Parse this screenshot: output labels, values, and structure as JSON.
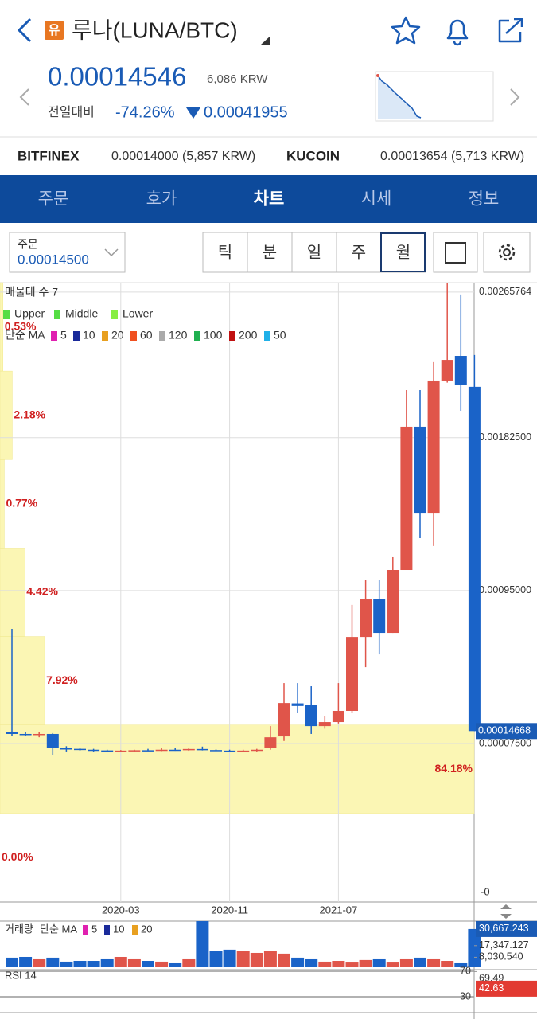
{
  "header": {
    "badge": "유",
    "title": "루나(LUNA/BTC)"
  },
  "price": {
    "value": "0.00014546",
    "krw": "6,086 KRW",
    "change_label": "전일대비",
    "change_pct": "-74.26%",
    "change_amount": "0.00041955"
  },
  "exchanges": [
    {
      "name": "BITFINEX",
      "price": "0.00014000 (5,857 KRW)"
    },
    {
      "name": "KUCOIN",
      "price": "0.00013654 (5,713 KRW)"
    }
  ],
  "tabs": [
    "주문",
    "호가",
    "차트",
    "시세",
    "정보"
  ],
  "order": {
    "label": "주문",
    "value": "0.00014500"
  },
  "periods": [
    "틱",
    "분",
    "일",
    "주",
    "월"
  ],
  "chart_data": [
    {
      "type": "candlestick",
      "title": "매물대 수 7",
      "legend": {
        "bands": [
          {
            "name": "Upper",
            "color": "#55dd44"
          },
          {
            "name": "Middle",
            "color": "#55dd44"
          },
          {
            "name": "Lower",
            "color": "#88ee44"
          }
        ],
        "ma_label": "단순 MA",
        "ma": [
          {
            "name": "5",
            "color": "#e020b0"
          },
          {
            "name": "10",
            "color": "#1a2a9a"
          },
          {
            "name": "20",
            "color": "#e8a020"
          },
          {
            "name": "60",
            "color": "#f05020"
          },
          {
            "name": "120",
            "color": "#aaaaaa"
          },
          {
            "name": "100",
            "color": "#20b050"
          },
          {
            "name": "200",
            "color": "#c01010"
          },
          {
            "name": "50",
            "color": "#20b0e8"
          }
        ]
      },
      "categories": [
        null,
        null,
        null,
        null,
        null,
        null,
        null,
        null,
        "2020-03",
        null,
        null,
        null,
        null,
        null,
        null,
        null,
        "2020-11",
        null,
        null,
        null,
        null,
        null,
        null,
        null,
        "2021-07",
        null,
        null,
        null,
        null,
        null,
        null,
        null,
        null,
        null,
        null
      ],
      "open": [
        0.000139,
        0.00013,
        0.000125,
        0.00013,
        4.8e-05,
        4.5e-05,
        4e-05,
        3.6e-05,
        3.4e-05,
        3.5e-05,
        3.7e-05,
        3.6e-05,
        4e-05,
        3.8e-05,
        4.4e-05,
        3.8e-05,
        3.5e-05,
        3.4e-05,
        3.5e-05,
        4.8e-05,
        0.000116,
        0.000305,
        0.000294,
        0.000175,
        0.000198,
        0.000262,
        0.000685,
        0.000904,
        0.000708,
        0.001068,
        0.001888,
        0.001391,
        0.002152,
        0.002293,
        0.002116
      ],
      "high": [
        0.000731,
        0.000139,
        0.000139,
        0.000135,
        6e-05,
        5e-05,
        4.5e-05,
        4e-05,
        3.8e-05,
        4e-05,
        4.5e-05,
        4.8e-05,
        5e-05,
        5.2e-05,
        5.8e-05,
        4.2e-05,
        4e-05,
        4e-05,
        4.5e-05,
        0.000175,
        0.000421,
        0.000421,
        0.000403,
        0.00023,
        0.000421,
        0.000868,
        0.001013,
        0.001013,
        0.001141,
        0.002097,
        0.002097,
        0.002257,
        0.002712,
        0.002644,
        0.002298
      ],
      "low": [
        0.00012,
        0.00012,
        0.000111,
        1.1e-05,
        3e-05,
        3.5e-05,
        3e-05,
        3e-05,
        3e-05,
        3e-05,
        3.2e-05,
        3.2e-05,
        3.4e-05,
        3.4e-05,
        3.6e-05,
        3.2e-05,
        3e-05,
        3e-05,
        3e-05,
        4e-05,
        9e-05,
        0.000253,
        0.00013,
        0.00016,
        0.00019,
        0.00025,
        0.000512,
        0.000585,
        0.000708,
        0.001068,
        0.00125,
        0.001205,
        0.00214,
        0.001979,
        0.00014668
      ],
      "close": [
        0.00013,
        0.000125,
        0.00013,
        4.8e-05,
        4.5e-05,
        4e-05,
        3.6e-05,
        3.4e-05,
        3.5e-05,
        3.7e-05,
        3.6e-05,
        4e-05,
        3.8e-05,
        4.4e-05,
        3.8e-05,
        3.5e-05,
        3.4e-05,
        3.5e-05,
        4e-05,
        0.000111,
        0.000307,
        0.00029,
        0.000175,
        0.000198,
        0.000262,
        0.000685,
        0.000904,
        0.000708,
        0.001068,
        0.001888,
        0.001391,
        0.002152,
        0.00227,
        0.002125,
        0.00014668
      ],
      "up_color": "#e0554a",
      "down_color": "#1a63c8",
      "ylim": [
        -0.000831,
        0.002712
      ],
      "yticks": [
        0.00265764,
        {
          "value": 0.001825,
          "label": "0.00182500"
        },
        {
          "value": 0.00095,
          "label": "0.00095000"
        },
        {
          "value": 7.5e-05,
          "label": "0.00007500"
        }
      ],
      "bottom_label": "-0",
      "last_price": 0.00014668,
      "grid": true,
      "profile": {
        "values": [
          0.53,
          2.18,
          0.77,
          4.42,
          7.92,
          84.18,
          0.0
        ],
        "value_labels": [
          "0.53%",
          "2.18%",
          "0.77%",
          "4.42%",
          "7.92%",
          "84.18%",
          "0.00%"
        ],
        "color": "#fbf6b4"
      }
    },
    {
      "type": "bar",
      "title": "거래량",
      "ma_label": "단순 MA",
      "ma": [
        {
          "name": "5",
          "color": "#e020b0"
        },
        {
          "name": "10",
          "color": "#1a2a9a"
        },
        {
          "name": "20",
          "color": "#e8a020"
        }
      ],
      "values": [
        7700,
        8300,
        6400,
        7700,
        4500,
        5100,
        5100,
        6400,
        8300,
        6400,
        5100,
        4500,
        3200,
        6400,
        37000,
        12800,
        14100,
        12800,
        11500,
        12800,
        10900,
        7700,
        6400,
        4500,
        5100,
        3800,
        5800,
        6400,
        3800,
        6400,
        7700,
        6400,
        5100,
        3200,
        30667.243
      ],
      "ylim": [
        0,
        37000
      ],
      "yticks": [
        {
          "value": 30667.243,
          "label": "30,667.243"
        },
        {
          "value": 17347.127,
          "label": "17,347.127"
        },
        {
          "value": 8030.54,
          "label": "8,030.540"
        }
      ]
    },
    {
      "type": "line",
      "title": "RSI 14",
      "ylim": [
        5,
        72.5
      ],
      "yticks": [
        70,
        30
      ],
      "current": [
        69.49,
        42.63
      ]
    }
  ]
}
